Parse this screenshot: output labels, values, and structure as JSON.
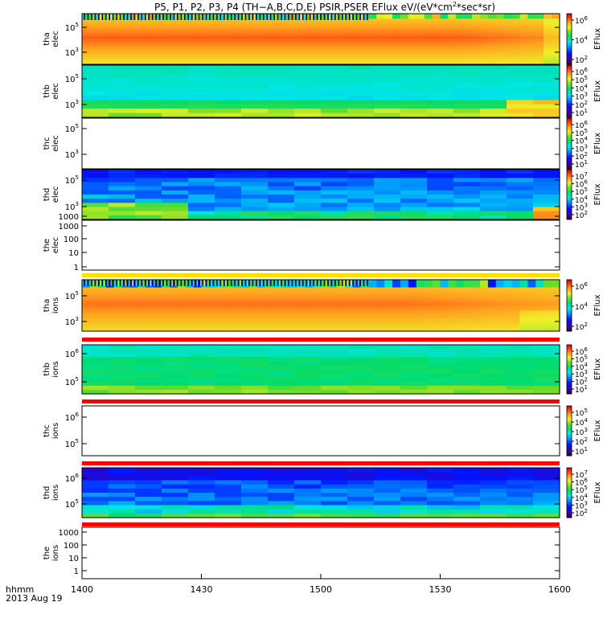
{
  "title": {
    "prefix": "P5, P1, P2, P3, P4 (TH−A,B,C,D,E) PSIR,PSER EFlux eV/(eV*cm",
    "sup": "2",
    "suffix": "*sec*sr)"
  },
  "x_axis": {
    "unit_label": "hhmm",
    "date_label": "2013 Aug 19",
    "ticks": [
      "1400",
      "1430",
      "1500",
      "1530",
      "1600"
    ]
  },
  "chart_data": [
    {
      "type": "heatmap",
      "probe": "tha",
      "species": "elec",
      "ylabel": [
        "tha",
        "elec"
      ],
      "y_scale": "log",
      "y_ticks": [
        {
          "mant": "10",
          "exp": "5"
        },
        {
          "mant": "10",
          "exp": "3"
        }
      ],
      "colorbar": {
        "label": "EFlux",
        "ticks": [
          {
            "mant": "10",
            "exp": "6"
          },
          {
            "mant": "10",
            "exp": "4"
          },
          {
            "mant": "10",
            "exp": "2"
          }
        ]
      },
      "pattern": "tha_elec"
    },
    {
      "type": "heatmap",
      "probe": "thb",
      "species": "elec",
      "ylabel": [
        "thb",
        "elec"
      ],
      "y_scale": "log",
      "y_ticks": [
        {
          "mant": "10",
          "exp": "5"
        },
        {
          "mant": "10",
          "exp": "3"
        }
      ],
      "colorbar": {
        "label": "EFlux",
        "ticks": [
          {
            "mant": "10",
            "exp": "6"
          },
          {
            "mant": "10",
            "exp": "5"
          },
          {
            "mant": "10",
            "exp": "4"
          },
          {
            "mant": "10",
            "exp": "3"
          },
          {
            "mant": "10",
            "exp": "2"
          },
          {
            "mant": "10",
            "exp": "1"
          }
        ]
      },
      "pattern": "thb_elec"
    },
    {
      "type": "heatmap",
      "probe": "thc",
      "species": "elec",
      "ylabel": [
        "thc",
        "elec"
      ],
      "y_scale": "log",
      "y_ticks": [
        {
          "mant": "10",
          "exp": "5"
        },
        {
          "mant": "10",
          "exp": "3"
        }
      ],
      "colorbar": {
        "label": "EFlux",
        "ticks": [
          {
            "mant": "10",
            "exp": "6"
          },
          {
            "mant": "10",
            "exp": "5"
          },
          {
            "mant": "10",
            "exp": "4"
          },
          {
            "mant": "10",
            "exp": "3"
          },
          {
            "mant": "10",
            "exp": "2"
          },
          {
            "mant": "10",
            "exp": "1"
          }
        ]
      },
      "pattern": "empty"
    },
    {
      "type": "heatmap",
      "probe": "thd",
      "species": "elec",
      "ylabel": [
        "thd",
        "elec"
      ],
      "y_scale": "log",
      "y_ticks": [
        {
          "mant": "10",
          "exp": "5"
        },
        {
          "mant": "10",
          "exp": "3"
        },
        {
          "mant": "1000",
          "exp": ""
        }
      ],
      "colorbar": {
        "label": "EFlux",
        "ticks": [
          {
            "mant": "10",
            "exp": "7"
          },
          {
            "mant": "10",
            "exp": "6"
          },
          {
            "mant": "10",
            "exp": "5"
          },
          {
            "mant": "10",
            "exp": "4"
          },
          {
            "mant": "10",
            "exp": "3"
          },
          {
            "mant": "10",
            "exp": "2"
          }
        ]
      },
      "pattern": "thd_elec"
    },
    {
      "type": "heatmap",
      "probe": "the",
      "species": "elec",
      "ylabel": [
        "the",
        "elec"
      ],
      "y_scale": "log",
      "y_ticks": [
        {
          "mant": "1000",
          "exp": ""
        },
        {
          "mant": "100",
          "exp": ""
        },
        {
          "mant": "10",
          "exp": ""
        },
        {
          "mant": "1",
          "exp": ""
        }
      ],
      "colorbar": null,
      "pattern": "empty"
    },
    {
      "type": "heatmap",
      "probe": "tha",
      "species": "ions",
      "ylabel": [
        "tha",
        "ions"
      ],
      "y_scale": "log",
      "y_ticks": [
        {
          "mant": "10",
          "exp": "5"
        },
        {
          "mant": "10",
          "exp": "3"
        }
      ],
      "colorbar": {
        "label": "EFlux",
        "ticks": [
          {
            "mant": "10",
            "exp": "6"
          },
          {
            "mant": "10",
            "exp": "4"
          },
          {
            "mant": "10",
            "exp": "2"
          }
        ]
      },
      "pattern": "tha_ions"
    },
    {
      "type": "heatmap",
      "probe": "thb",
      "species": "ions",
      "ylabel": [
        "thb",
        "ions"
      ],
      "y_scale": "log",
      "y_ticks": [
        {
          "mant": "10",
          "exp": "6"
        },
        {
          "mant": "10",
          "exp": "5"
        }
      ],
      "colorbar": {
        "label": "EFlux",
        "ticks": [
          {
            "mant": "10",
            "exp": "6"
          },
          {
            "mant": "10",
            "exp": "5"
          },
          {
            "mant": "10",
            "exp": "4"
          },
          {
            "mant": "10",
            "exp": "3"
          },
          {
            "mant": "10",
            "exp": "2"
          },
          {
            "mant": "10",
            "exp": "1"
          }
        ]
      },
      "pattern": "thb_ions"
    },
    {
      "type": "heatmap",
      "probe": "thc",
      "species": "ions",
      "ylabel": [
        "thc",
        "ions"
      ],
      "y_scale": "log",
      "y_ticks": [
        {
          "mant": "10",
          "exp": "6"
        },
        {
          "mant": "10",
          "exp": "5"
        }
      ],
      "colorbar": {
        "label": "EFlux",
        "ticks": [
          {
            "mant": "10",
            "exp": "5"
          },
          {
            "mant": "10",
            "exp": "4"
          },
          {
            "mant": "10",
            "exp": "3"
          },
          {
            "mant": "10",
            "exp": "2"
          },
          {
            "mant": "10",
            "exp": "1"
          }
        ]
      },
      "pattern": "empty"
    },
    {
      "type": "heatmap",
      "probe": "thd",
      "species": "ions",
      "ylabel": [
        "thd",
        "ions"
      ],
      "y_scale": "log",
      "y_ticks": [
        {
          "mant": "10",
          "exp": "6"
        },
        {
          "mant": "10",
          "exp": "5"
        }
      ],
      "colorbar": {
        "label": "EFlux",
        "ticks": [
          {
            "mant": "10",
            "exp": "7"
          },
          {
            "mant": "10",
            "exp": "6"
          },
          {
            "mant": "10",
            "exp": "5"
          },
          {
            "mant": "10",
            "exp": "4"
          },
          {
            "mant": "10",
            "exp": "3"
          },
          {
            "mant": "10",
            "exp": "2"
          }
        ]
      },
      "pattern": "thd_ions"
    },
    {
      "type": "heatmap",
      "probe": "the",
      "species": "ions",
      "ylabel": [
        "the",
        "ions"
      ],
      "y_scale": "log",
      "y_ticks": [
        {
          "mant": "1000",
          "exp": ""
        },
        {
          "mant": "100",
          "exp": ""
        },
        {
          "mant": "10",
          "exp": ""
        },
        {
          "mant": "1",
          "exp": ""
        }
      ],
      "colorbar": null,
      "pattern": "empty"
    }
  ]
}
